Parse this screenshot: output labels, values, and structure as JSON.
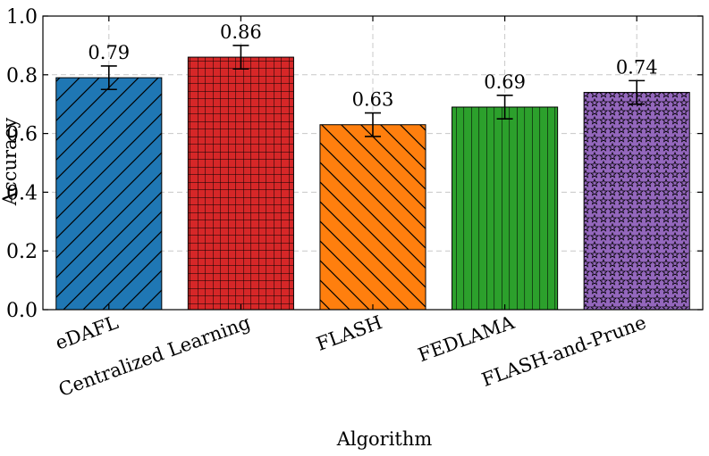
{
  "chart_data": {
    "type": "bar",
    "title": "",
    "xlabel": "Algorithm",
    "ylabel": "Accuracy",
    "ylim": [
      0,
      1.0
    ],
    "yticks": [
      0.0,
      0.2,
      0.4,
      0.6,
      0.8,
      1.0
    ],
    "ytick_labels": [
      "0.0",
      "0.2",
      "0.4",
      "0.6",
      "0.8",
      "1.0"
    ],
    "grid": true,
    "categories": [
      "eDAFL",
      "Centralized Learning",
      "FLASH",
      "FEDLAMA",
      "FLASH-and-Prune"
    ],
    "values": [
      0.79,
      0.86,
      0.63,
      0.69,
      0.74
    ],
    "value_labels": [
      "0.79",
      "0.86",
      "0.63",
      "0.69",
      "0.74"
    ],
    "errors": [
      0.04,
      0.04,
      0.04,
      0.04,
      0.04
    ],
    "colors": [
      "#1f77b4",
      "#d62728",
      "#ff7f0e",
      "#2ca02c",
      "#9467bd"
    ],
    "hatches": [
      "diagonal-up",
      "grid",
      "diagonal-down",
      "vertical",
      "stars"
    ]
  }
}
